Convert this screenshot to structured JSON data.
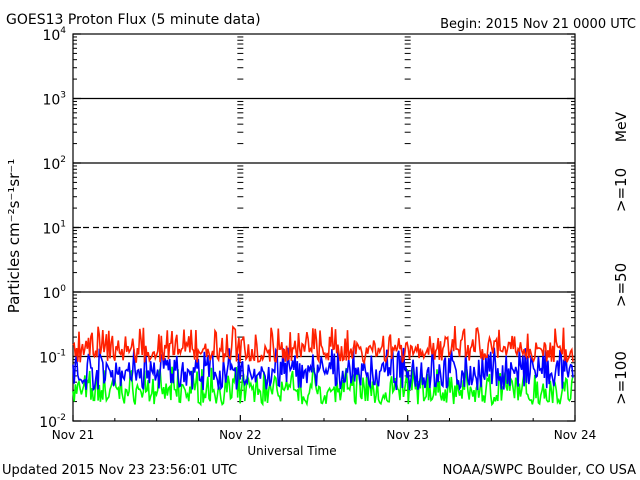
{
  "header": {
    "title": "GOES13 Proton Flux (5 minute data)",
    "begin": "Begin: 2015 Nov 21 0000 UTC"
  },
  "footer": {
    "updated": "Updated 2015 Nov 23 23:56:01 UTC",
    "credit": "NOAA/SWPC Boulder, CO USA"
  },
  "chart_data": {
    "type": "line",
    "title": "GOES13 Proton Flux (5 minute data)",
    "xlabel": "Universal Time",
    "ylabel": "Particles cm⁻²s⁻¹sr⁻¹",
    "yscale": "log",
    "ylim": [
      0.01,
      10000
    ],
    "xlim": [
      "2015-11-21 00:00",
      "2015-11-24 00:00"
    ],
    "x_tick_labels": [
      "Nov 21",
      "Nov 22",
      "Nov 23",
      "Nov 24"
    ],
    "y_tick_labels": [
      {
        "base": "10",
        "exp": "-2"
      },
      {
        "base": "10",
        "exp": "-1"
      },
      {
        "base": "10",
        "exp": "0"
      },
      {
        "base": "10",
        "exp": "1"
      },
      {
        "base": "10",
        "exp": "2"
      },
      {
        "base": "10",
        "exp": "3"
      },
      {
        "base": "10",
        "exp": "4"
      }
    ],
    "reference_lines": [
      {
        "value": 10,
        "style": "dashed"
      }
    ],
    "legend": {
      "placement": "right",
      "unit": "MeV",
      "entries": [
        {
          "label": ">=10",
          "color": "#ff2000"
        },
        {
          "label": ">=50",
          "color": "#0000ff"
        },
        {
          "label": ">=100",
          "color": "#00ff00"
        }
      ]
    },
    "series": [
      {
        "name": ">=10",
        "color": "#ff2000",
        "x_range": [
          "2015-11-21 00:00",
          "2015-11-23 23:55"
        ],
        "values_approx": {
          "baseline": 0.13,
          "low": 0.08,
          "high": 0.3
        }
      },
      {
        "name": ">=50",
        "color": "#0000ff",
        "x_range": [
          "2015-11-21 00:00",
          "2015-11-23 23:55"
        ],
        "values_approx": {
          "baseline": 0.06,
          "low": 0.03,
          "high": 0.14
        }
      },
      {
        "name": ">=100",
        "color": "#00ff00",
        "x_range": [
          "2015-11-21 00:00",
          "2015-11-23 23:55"
        ],
        "values_approx": {
          "baseline": 0.03,
          "low": 0.018,
          "high": 0.07
        }
      }
    ]
  }
}
